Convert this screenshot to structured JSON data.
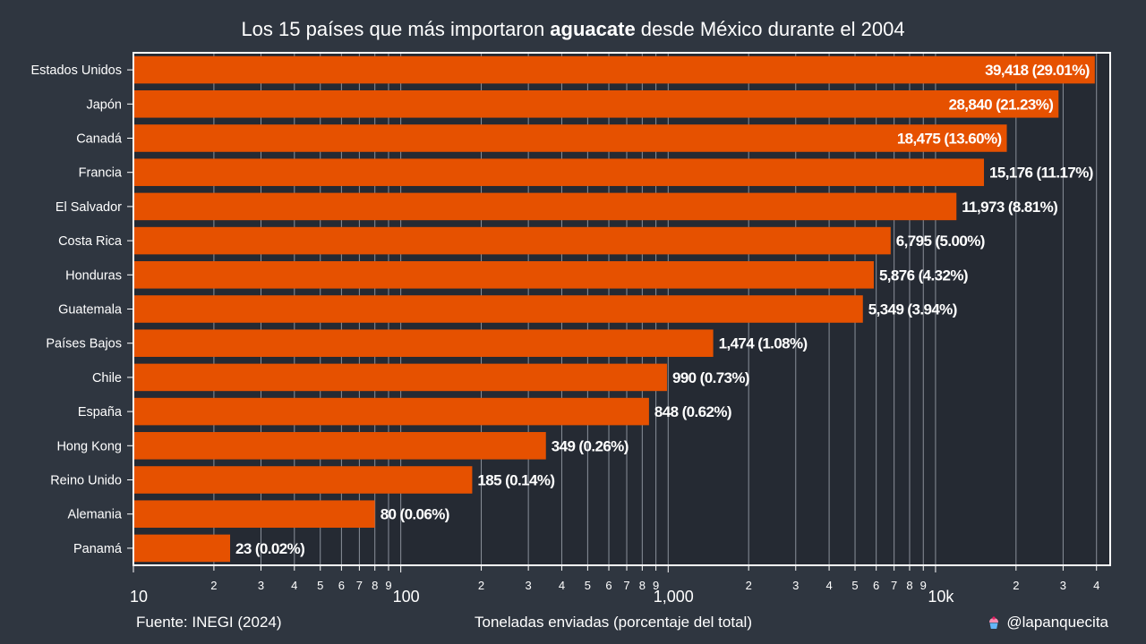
{
  "title": {
    "pre": "Los 15 países que más importaron ",
    "bold": "aguacate",
    "post": " desde México durante el 2004"
  },
  "source": "Fuente: INEGI (2024)",
  "credit": "@lapanquecita",
  "colors": {
    "background": "#2f3640",
    "plot_background": "#252a33",
    "bar": "#e65100",
    "grid": "#8a909a",
    "frame": "#ffffff",
    "text": "#ffffff"
  },
  "chart_data": {
    "type": "bar",
    "orientation": "horizontal",
    "xscale": "log",
    "xlim": [
      10,
      45000
    ],
    "xlabel": "Toneladas enviadas (porcentaje del total)",
    "major_ticks": [
      {
        "value": 10,
        "label": "10"
      },
      {
        "value": 100,
        "label": "100"
      },
      {
        "value": 1000,
        "label": "1,000"
      },
      {
        "value": 10000,
        "label": "10k"
      }
    ],
    "minor_ticks": [
      {
        "value": 20,
        "label": "2"
      },
      {
        "value": 30,
        "label": "3"
      },
      {
        "value": 40,
        "label": "4"
      },
      {
        "value": 50,
        "label": "5"
      },
      {
        "value": 60,
        "label": "6"
      },
      {
        "value": 70,
        "label": "7"
      },
      {
        "value": 80,
        "label": "8"
      },
      {
        "value": 90,
        "label": "9"
      },
      {
        "value": 200,
        "label": "2"
      },
      {
        "value": 300,
        "label": "3"
      },
      {
        "value": 400,
        "label": "4"
      },
      {
        "value": 500,
        "label": "5"
      },
      {
        "value": 600,
        "label": "6"
      },
      {
        "value": 700,
        "label": "7"
      },
      {
        "value": 800,
        "label": "8"
      },
      {
        "value": 900,
        "label": "9"
      },
      {
        "value": 2000,
        "label": "2"
      },
      {
        "value": 3000,
        "label": "3"
      },
      {
        "value": 4000,
        "label": "4"
      },
      {
        "value": 5000,
        "label": "5"
      },
      {
        "value": 6000,
        "label": "6"
      },
      {
        "value": 7000,
        "label": "7"
      },
      {
        "value": 8000,
        "label": "8"
      },
      {
        "value": 9000,
        "label": "9"
      },
      {
        "value": 20000,
        "label": "2"
      },
      {
        "value": 30000,
        "label": "3"
      },
      {
        "value": 40000,
        "label": "4"
      }
    ],
    "categories": [
      "Estados Unidos",
      "Japón",
      "Canadá",
      "Francia",
      "El Salvador",
      "Costa Rica",
      "Honduras",
      "Guatemala",
      "Países Bajos",
      "Chile",
      "España",
      "Hong Kong",
      "Reino Unido",
      "Alemania",
      "Panamá"
    ],
    "values": [
      39418,
      28840,
      18475,
      15176,
      11973,
      6795,
      5876,
      5349,
      1474,
      990,
      848,
      349,
      185,
      80,
      23
    ],
    "labels": [
      "39,418 (29.01%)",
      "28,840 (21.23%)",
      "18,475 (13.60%)",
      "15,176 (11.17%)",
      "11,973 (8.81%)",
      "6,795 (5.00%)",
      "5,876 (4.32%)",
      "5,349 (3.94%)",
      "1,474 (1.08%)",
      "990 (0.73%)",
      "848 (0.62%)",
      "349 (0.26%)",
      "185 (0.14%)",
      "80 (0.06%)",
      "23 (0.02%)"
    ],
    "inside_label_count": 3
  }
}
